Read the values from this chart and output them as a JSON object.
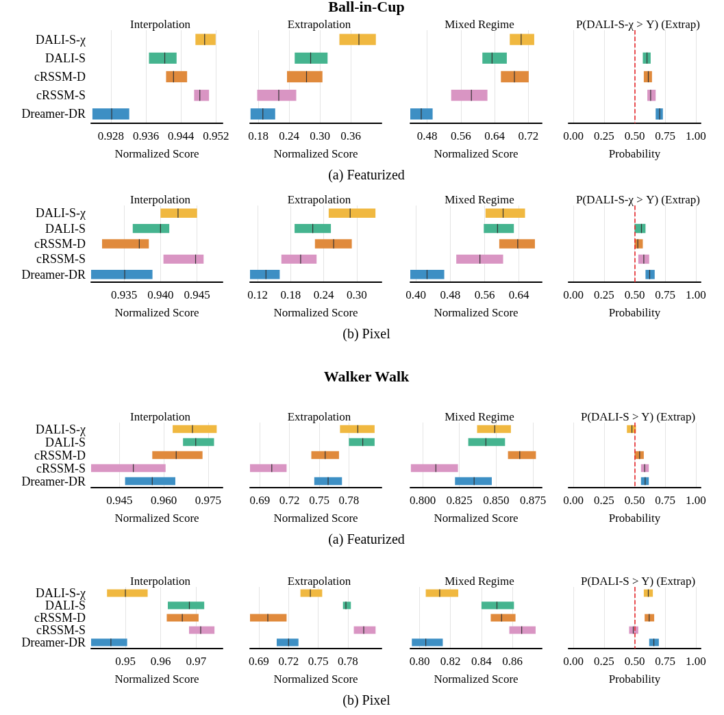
{
  "chart_data": [
    {
      "type": "box",
      "orientation": "horizontal",
      "title": "Interpolation",
      "xlabel": "Normalized Score",
      "annotations": [
        "Ball-in-Cup",
        "(a) Featurized"
      ],
      "categories": [
        "DALI-S-χ",
        "DALI-S",
        "cRSSM-D",
        "cRSSM-S",
        "Dreamer-DR"
      ],
      "colors": [
        "#f0b840",
        "#45b48f",
        "#e08a3c",
        "#d995c3",
        "#3d8fc4"
      ],
      "boxes": [
        {
          "low": 0.9473,
          "q1": 0.9473,
          "median": 0.9494,
          "q3": 0.9519,
          "high": 0.9519
        },
        {
          "low": 0.9367,
          "q1": 0.9367,
          "median": 0.9403,
          "q3": 0.943,
          "high": 0.943
        },
        {
          "low": 0.9406,
          "q1": 0.9406,
          "median": 0.9423,
          "q3": 0.9454,
          "high": 0.9454
        },
        {
          "low": 0.947,
          "q1": 0.947,
          "median": 0.9483,
          "q3": 0.9504,
          "high": 0.9504
        },
        {
          "low": 0.9238,
          "q1": 0.9238,
          "median": 0.9282,
          "q3": 0.9322,
          "high": 0.9322
        }
      ],
      "xlim": [
        0.9235,
        0.9535
      ],
      "xticks": [
        0.928,
        0.936,
        0.944,
        0.952
      ],
      "grid": "x"
    },
    {
      "type": "box",
      "orientation": "horizontal",
      "title": "Extrapolation",
      "xlabel": "Normalized Score",
      "categories": [
        null,
        null,
        null,
        null,
        null
      ],
      "colors": [
        "#f0b840",
        "#45b48f",
        "#e08a3c",
        "#d995c3",
        "#3d8fc4"
      ],
      "boxes": [
        {
          "low": 0.338,
          "q1": 0.338,
          "median": 0.376,
          "q3": 0.409,
          "high": 0.409
        },
        {
          "low": 0.251,
          "q1": 0.251,
          "median": 0.282,
          "q3": 0.315,
          "high": 0.315
        },
        {
          "low": 0.236,
          "q1": 0.236,
          "median": 0.274,
          "q3": 0.305,
          "high": 0.305
        },
        {
          "low": 0.178,
          "q1": 0.178,
          "median": 0.22,
          "q3": 0.254,
          "high": 0.254
        },
        {
          "low": 0.165,
          "q1": 0.165,
          "median": 0.189,
          "q3": 0.213,
          "high": 0.213
        }
      ],
      "xlim": [
        0.164,
        0.42
      ],
      "xticks": [
        0.18,
        0.24,
        {
          "value": 0.3,
          "label": "0.30"
        },
        0.36
      ],
      "grid": "x"
    },
    {
      "type": "box",
      "orientation": "horizontal",
      "title": "Mixed Regime",
      "xlabel": "Normalized Score",
      "categories": [
        null,
        null,
        null,
        null,
        null
      ],
      "colors": [
        "#f0b840",
        "#45b48f",
        "#e08a3c",
        "#d995c3",
        "#3d8fc4"
      ],
      "boxes": [
        {
          "low": 0.676,
          "q1": 0.676,
          "median": 0.703,
          "q3": 0.734,
          "high": 0.734
        },
        {
          "low": 0.611,
          "q1": 0.611,
          "median": 0.634,
          "q3": 0.669,
          "high": 0.669
        },
        {
          "low": 0.655,
          "q1": 0.655,
          "median": 0.687,
          "q3": 0.721,
          "high": 0.721
        },
        {
          "low": 0.537,
          "q1": 0.537,
          "median": 0.585,
          "q3": 0.623,
          "high": 0.623
        },
        {
          "low": 0.44,
          "q1": 0.44,
          "median": 0.466,
          "q3": 0.493,
          "high": 0.493
        }
      ],
      "xlim": [
        0.44,
        0.752
      ],
      "xticks": [
        0.48,
        0.56,
        0.64,
        0.72
      ],
      "grid": "x"
    },
    {
      "type": "box",
      "orientation": "horizontal",
      "title": "P(DALI-S-χ > Y) (Extrap)",
      "xlabel": "Probability",
      "categories": [
        null,
        null,
        null,
        null,
        null
      ],
      "colors": [
        null,
        "#45b48f",
        "#e08a3c",
        "#d995c3",
        "#3d8fc4"
      ],
      "boxes": [
        null,
        {
          "low": 0.567,
          "q1": 0.567,
          "median": 0.601,
          "q3": 0.631,
          "high": 0.631
        },
        {
          "low": 0.575,
          "q1": 0.575,
          "median": 0.612,
          "q3": 0.642,
          "high": 0.642
        },
        {
          "low": 0.604,
          "q1": 0.604,
          "median": 0.631,
          "q3": 0.672,
          "high": 0.672
        },
        {
          "low": 0.672,
          "q1": 0.672,
          "median": 0.705,
          "q3": 0.731,
          "high": 0.731
        }
      ],
      "xlim": [
        -0.04,
        1.04
      ],
      "xticks": [
        {
          "value": 0,
          "label": "0.00"
        },
        0.25,
        {
          "value": 0.5,
          "label": "0.50"
        },
        0.75,
        {
          "value": 1,
          "label": "1.00"
        }
      ],
      "grid": "x",
      "ref_lines": [
        {
          "axis": "x",
          "value": 0.5,
          "label": null,
          "color": "#e8262b",
          "line_style": "dashed"
        }
      ]
    },
    {
      "type": "box",
      "orientation": "horizontal",
      "title": "Interpolation",
      "xlabel": "Normalized Score",
      "annotations": [
        "(b) Pixel"
      ],
      "categories": [
        "DALI-S-χ",
        "DALI-S",
        "cRSSM-D",
        "cRSSM-S",
        "Dreamer-DR"
      ],
      "colors": [
        "#f0b840",
        "#45b48f",
        "#e08a3c",
        "#d995c3",
        "#3d8fc4"
      ],
      "boxes": [
        {
          "low": 0.94,
          "q1": 0.94,
          "median": 0.9424,
          "q3": 0.945,
          "high": 0.945
        },
        {
          "low": 0.9362,
          "q1": 0.9362,
          "median": 0.94,
          "q3": 0.9412,
          "high": 0.9412
        },
        {
          "low": 0.932,
          "q1": 0.932,
          "median": 0.9371,
          "q3": 0.9384,
          "high": 0.9384
        },
        {
          "low": 0.9404,
          "q1": 0.9404,
          "median": 0.9448,
          "q3": 0.9459,
          "high": 0.9459
        },
        {
          "low": 0.9305,
          "q1": 0.9305,
          "median": 0.9351,
          "q3": 0.9389,
          "high": 0.9389
        }
      ],
      "xlim": [
        0.9305,
        0.9485
      ],
      "xticks": [
        0.935,
        {
          "value": 0.94,
          "label": "0.940"
        },
        0.945
      ],
      "grid": "x"
    },
    {
      "type": "box",
      "orientation": "horizontal",
      "title": "Extrapolation",
      "xlabel": "Normalized Score",
      "categories": [
        null,
        null,
        null,
        null,
        null
      ],
      "colors": [
        "#f0b840",
        "#45b48f",
        "#e08a3c",
        "#d995c3",
        "#3d8fc4"
      ],
      "boxes": [
        {
          "low": 0.249,
          "q1": 0.249,
          "median": 0.288,
          "q3": 0.334,
          "high": 0.334
        },
        {
          "low": 0.187,
          "q1": 0.187,
          "median": 0.22,
          "q3": 0.253,
          "high": 0.253
        },
        {
          "low": 0.224,
          "q1": 0.224,
          "median": 0.258,
          "q3": 0.291,
          "high": 0.291
        },
        {
          "low": 0.163,
          "q1": 0.163,
          "median": 0.198,
          "q3": 0.227,
          "high": 0.227
        },
        {
          "low": 0.106,
          "q1": 0.106,
          "median": 0.135,
          "q3": 0.16,
          "high": 0.16
        }
      ],
      "xlim": [
        0.106,
        0.345
      ],
      "xticks": [
        0.12,
        0.18,
        0.24,
        {
          "value": 0.3,
          "label": "0.30"
        }
      ],
      "grid": "x"
    },
    {
      "type": "box",
      "orientation": "horizontal",
      "title": "Mixed Regime",
      "xlabel": "Normalized Score",
      "categories": [
        null,
        null,
        null,
        null,
        null
      ],
      "colors": [
        "#f0b840",
        "#45b48f",
        "#e08a3c",
        "#d995c3",
        "#3d8fc4"
      ],
      "boxes": [
        {
          "low": 0.562,
          "q1": 0.562,
          "median": 0.603,
          "q3": 0.654,
          "high": 0.654
        },
        {
          "low": 0.558,
          "q1": 0.558,
          "median": 0.59,
          "q3": 0.628,
          "high": 0.628
        },
        {
          "low": 0.594,
          "q1": 0.594,
          "median": 0.637,
          "q3": 0.677,
          "high": 0.677
        },
        {
          "low": 0.494,
          "q1": 0.494,
          "median": 0.549,
          "q3": 0.603,
          "high": 0.603
        },
        {
          "low": 0.387,
          "q1": 0.387,
          "median": 0.426,
          "q3": 0.466,
          "high": 0.466
        }
      ],
      "xlim": [
        0.387,
        0.693
      ],
      "xticks": [
        {
          "value": 0.4,
          "label": "0.40"
        },
        0.48,
        0.56,
        0.64
      ],
      "grid": "x"
    },
    {
      "type": "box",
      "orientation": "horizontal",
      "title": "P(DALI-S-χ > Y) (Extrap)",
      "xlabel": "Probability",
      "categories": [
        null,
        null,
        null,
        null,
        null
      ],
      "colors": [
        null,
        "#45b48f",
        "#e08a3c",
        "#d995c3",
        "#3d8fc4"
      ],
      "boxes": [
        null,
        {
          "low": 0.5,
          "q1": 0.5,
          "median": 0.556,
          "q3": 0.589,
          "high": 0.589
        },
        {
          "low": 0.5,
          "q1": 0.5,
          "median": 0.526,
          "q3": 0.567,
          "high": 0.567
        },
        {
          "low": 0.53,
          "q1": 0.53,
          "median": 0.575,
          "q3": 0.619,
          "high": 0.619
        },
        {
          "low": 0.589,
          "q1": 0.589,
          "median": 0.623,
          "q3": 0.664,
          "high": 0.664
        }
      ],
      "xlim": [
        -0.04,
        1.04
      ],
      "xticks": [
        {
          "value": 0,
          "label": "0.00"
        },
        0.25,
        {
          "value": 0.5,
          "label": "0.50"
        },
        0.75,
        {
          "value": 1,
          "label": "1.00"
        }
      ],
      "grid": "x",
      "ref_lines": [
        {
          "axis": "x",
          "value": 0.5,
          "label": null,
          "color": "#e8262b",
          "line_style": "dashed"
        }
      ]
    },
    {
      "type": "box",
      "orientation": "horizontal",
      "title": "Interpolation",
      "xlabel": "Normalized Score",
      "annotations": [
        "Walker Walk",
        "(a) Featurized"
      ],
      "categories": [
        "DALI-S-χ",
        "DALI-S",
        "cRSSM-D",
        "cRSSM-S",
        "Dreamer-DR"
      ],
      "colors": [
        "#f0b840",
        "#45b48f",
        "#e08a3c",
        "#d995c3",
        "#3d8fc4"
      ],
      "boxes": [
        {
          "low": 0.963,
          "q1": 0.963,
          "median": 0.9697,
          "q3": 0.9779,
          "high": 0.9779
        },
        {
          "low": 0.9665,
          "q1": 0.9665,
          "median": 0.9708,
          "q3": 0.977,
          "high": 0.977
        },
        {
          "low": 0.9561,
          "q1": 0.9561,
          "median": 0.9642,
          "q3": 0.9731,
          "high": 0.9731
        },
        {
          "low": 0.9354,
          "q1": 0.9354,
          "median": 0.9497,
          "q3": 0.9606,
          "high": 0.9606
        },
        {
          "low": 0.9469,
          "q1": 0.9469,
          "median": 0.9561,
          "q3": 0.9639,
          "high": 0.9639
        }
      ],
      "xlim": [
        0.9354,
        0.9799
      ],
      "xticks": [
        0.945,
        {
          "value": 0.96,
          "label": "0.960"
        },
        0.975
      ],
      "grid": "x"
    },
    {
      "type": "box",
      "orientation": "horizontal",
      "title": "Extrapolation",
      "xlabel": "Normalized Score",
      "categories": [
        null,
        null,
        null,
        null,
        null
      ],
      "colors": [
        "#f0b840",
        "#45b48f",
        "#e08a3c",
        "#d995c3",
        "#3d8fc4"
      ],
      "boxes": [
        {
          "low": 0.771,
          "q1": 0.771,
          "median": 0.789,
          "q3": 0.806,
          "high": 0.806
        },
        {
          "low": 0.78,
          "q1": 0.78,
          "median": 0.794,
          "q3": 0.806,
          "high": 0.806
        },
        {
          "low": 0.742,
          "q1": 0.742,
          "median": 0.756,
          "q3": 0.77,
          "high": 0.77
        },
        {
          "low": 0.68,
          "q1": 0.68,
          "median": 0.702,
          "q3": 0.717,
          "high": 0.717
        },
        {
          "low": 0.745,
          "q1": 0.745,
          "median": 0.759,
          "q3": 0.773,
          "high": 0.773
        }
      ],
      "xlim": [
        0.68,
        0.813
      ],
      "xticks": [
        0.69,
        0.72,
        0.75,
        0.78
      ],
      "grid": "x"
    },
    {
      "type": "box",
      "orientation": "horizontal",
      "title": "Mixed Regime",
      "xlabel": "Normalized Score",
      "categories": [
        null,
        null,
        null,
        null,
        null
      ],
      "colors": [
        "#f0b840",
        "#45b48f",
        "#e08a3c",
        "#d995c3",
        "#3d8fc4"
      ],
      "boxes": [
        {
          "low": 0.837,
          "q1": 0.837,
          "median": 0.849,
          "q3": 0.86,
          "high": 0.86
        },
        {
          "low": 0.831,
          "q1": 0.831,
          "median": 0.843,
          "q3": 0.856,
          "high": 0.856
        },
        {
          "low": 0.858,
          "q1": 0.858,
          "median": 0.866,
          "q3": 0.877,
          "high": 0.877
        },
        {
          "low": 0.792,
          "q1": 0.792,
          "median": 0.809,
          "q3": 0.824,
          "high": 0.824
        },
        {
          "low": 0.822,
          "q1": 0.822,
          "median": 0.835,
          "q3": 0.847,
          "high": 0.847
        }
      ],
      "xlim": [
        0.7916,
        0.881
      ],
      "xticks": [
        {
          "value": 0.8,
          "label": "0.800"
        },
        0.825,
        {
          "value": 0.85,
          "label": "0.850"
        },
        0.875
      ],
      "grid": "x"
    },
    {
      "type": "box",
      "orientation": "horizontal",
      "title": "P(DALI-S > Y) (Extrap)",
      "xlabel": "Probability",
      "categories": [
        null,
        null,
        null,
        null,
        null
      ],
      "colors": [
        "#f0b840",
        null,
        "#e08a3c",
        "#d995c3",
        "#3d8fc4"
      ],
      "boxes": [
        {
          "low": 0.437,
          "q1": 0.437,
          "median": 0.478,
          "q3": 0.511,
          "high": 0.511
        },
        null,
        {
          "low": 0.5,
          "q1": 0.5,
          "median": 0.541,
          "q3": 0.575,
          "high": 0.575
        },
        {
          "low": 0.552,
          "q1": 0.552,
          "median": 0.582,
          "q3": 0.616,
          "high": 0.616
        },
        {
          "low": 0.552,
          "q1": 0.552,
          "median": 0.586,
          "q3": 0.616,
          "high": 0.616
        }
      ],
      "xlim": [
        -0.04,
        1.04
      ],
      "xticks": [
        {
          "value": 0,
          "label": "0.00"
        },
        0.25,
        {
          "value": 0.5,
          "label": "0.50"
        },
        0.75,
        {
          "value": 1,
          "label": "1.00"
        }
      ],
      "grid": "x",
      "ref_lines": [
        {
          "axis": "x",
          "value": 0.5,
          "label": null,
          "color": "#e8262b",
          "line_style": "dashed"
        }
      ]
    },
    {
      "type": "box",
      "orientation": "horizontal",
      "title": "Interpolation",
      "xlabel": "Normalized Score",
      "annotations": [
        "(b) Pixel"
      ],
      "categories": [
        "DALI-S-χ",
        "DALI-S",
        "cRSSM-D",
        "cRSSM-S",
        "Dreamer-DR"
      ],
      "colors": [
        "#f0b840",
        "#45b48f",
        "#e08a3c",
        "#d995c3",
        "#3d8fc4"
      ],
      "boxes": [
        {
          "low": 0.9448,
          "q1": 0.9448,
          "median": 0.95,
          "q3": 0.9563,
          "high": 0.9563
        },
        {
          "low": 0.962,
          "q1": 0.962,
          "median": 0.9681,
          "q3": 0.9723,
          "high": 0.9723
        },
        {
          "low": 0.9617,
          "q1": 0.9617,
          "median": 0.9661,
          "q3": 0.9707,
          "high": 0.9707
        },
        {
          "low": 0.968,
          "q1": 0.968,
          "median": 0.9713,
          "q3": 0.9752,
          "high": 0.9752
        },
        {
          "low": 0.9403,
          "q1": 0.9403,
          "median": 0.9459,
          "q3": 0.9505,
          "high": 0.9505
        }
      ],
      "xlim": [
        0.9403,
        0.9775
      ],
      "xticks": [
        0.95,
        0.96,
        0.97
      ],
      "grid": "x"
    },
    {
      "type": "box",
      "orientation": "horizontal",
      "title": "Extrapolation",
      "xlabel": "Normalized Score",
      "categories": [
        null,
        null,
        null,
        null,
        null
      ],
      "colors": [
        "#f0b840",
        "#45b48f",
        "#e08a3c",
        "#d995c3",
        "#3d8fc4"
      ],
      "boxes": [
        {
          "low": 0.732,
          "q1": 0.732,
          "median": 0.742,
          "q3": 0.754,
          "high": 0.754
        },
        {
          "low": 0.775,
          "q1": 0.775,
          "median": 0.778,
          "q3": 0.783,
          "high": 0.783
        },
        {
          "low": 0.681,
          "q1": 0.681,
          "median": 0.699,
          "q3": 0.718,
          "high": 0.718
        },
        {
          "low": 0.786,
          "q1": 0.786,
          "median": 0.796,
          "q3": 0.808,
          "high": 0.808
        },
        {
          "low": 0.708,
          "q1": 0.708,
          "median": 0.72,
          "q3": 0.73,
          "high": 0.73
        }
      ],
      "xlim": [
        0.681,
        0.814
      ],
      "xticks": [
        0.69,
        0.72,
        0.75,
        0.78
      ],
      "grid": "x"
    },
    {
      "type": "box",
      "orientation": "horizontal",
      "title": "Mixed Regime",
      "xlabel": "Normalized Score",
      "categories": [
        null,
        null,
        null,
        null,
        null
      ],
      "colors": [
        "#f0b840",
        "#45b48f",
        "#e08a3c",
        "#d995c3",
        "#3d8fc4"
      ],
      "boxes": [
        {
          "low": 0.804,
          "q1": 0.804,
          "median": 0.813,
          "q3": 0.825,
          "high": 0.825
        },
        {
          "low": 0.84,
          "q1": 0.84,
          "median": 0.85,
          "q3": 0.861,
          "high": 0.861
        },
        {
          "low": 0.846,
          "q1": 0.846,
          "median": 0.853,
          "q3": 0.862,
          "high": 0.862
        },
        {
          "low": 0.858,
          "q1": 0.858,
          "median": 0.866,
          "q3": 0.875,
          "high": 0.875
        },
        {
          "low": 0.795,
          "q1": 0.795,
          "median": 0.804,
          "q3": 0.815,
          "high": 0.815
        }
      ],
      "xlim": [
        0.794,
        0.879
      ],
      "xticks": [
        {
          "value": 0.8,
          "label": "0.80"
        },
        0.82,
        0.84,
        0.86
      ],
      "grid": "x"
    },
    {
      "type": "box",
      "orientation": "horizontal",
      "title": "P(DALI-S > Y) (Extrap)",
      "xlabel": "Probability",
      "categories": [
        null,
        null,
        null,
        null,
        null
      ],
      "colors": [
        "#f0b840",
        null,
        "#e08a3c",
        "#d995c3",
        "#3d8fc4"
      ],
      "boxes": [
        {
          "low": 0.575,
          "q1": 0.575,
          "median": 0.612,
          "q3": 0.649,
          "high": 0.649
        },
        null,
        {
          "low": 0.582,
          "q1": 0.582,
          "median": 0.619,
          "q3": 0.66,
          "high": 0.66
        },
        {
          "low": 0.455,
          "q1": 0.455,
          "median": 0.489,
          "q3": 0.53,
          "high": 0.53
        },
        {
          "low": 0.619,
          "q1": 0.619,
          "median": 0.657,
          "q3": 0.698,
          "high": 0.698
        }
      ],
      "xlim": [
        -0.04,
        1.04
      ],
      "xticks": [
        {
          "value": 0,
          "label": "0.00"
        },
        0.25,
        {
          "value": 0.5,
          "label": "0.50"
        },
        0.75,
        {
          "value": 1,
          "label": "1.00"
        }
      ],
      "grid": "x",
      "ref_lines": [
        {
          "axis": "x",
          "value": 0.5,
          "label": null,
          "color": "#e8262b",
          "line_style": "dashed"
        }
      ]
    }
  ]
}
